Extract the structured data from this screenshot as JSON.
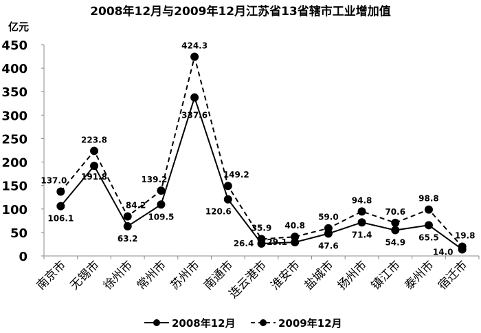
{
  "chart_data": {
    "type": "line",
    "title": "2008年12月与2009年12月江苏省13省辖市工业增加值",
    "ylabel": "亿元",
    "xlabel": "",
    "ylim": [
      0,
      450
    ],
    "yticks": [
      0,
      50,
      100,
      150,
      200,
      250,
      300,
      350,
      400,
      450
    ],
    "grid": false,
    "legend": "bottom",
    "categories": [
      "南京市",
      "无锡市",
      "徐州市",
      "常州市",
      "苏州市",
      "南通市",
      "连云港市",
      "淮安市",
      "盐城市",
      "扬州市",
      "镇江市",
      "泰州市",
      "宿迁市"
    ],
    "series": [
      {
        "name": "2008年12月",
        "style": "solid",
        "color": "#000000",
        "values": [
          106.1,
          191.8,
          63.2,
          109.5,
          337.6,
          120.6,
          26.4,
          29.1,
          47.6,
          71.4,
          54.9,
          65.5,
          14.0
        ]
      },
      {
        "name": "2009年12月",
        "style": "dashed",
        "color": "#000000",
        "values": [
          137.0,
          223.8,
          84.2,
          139.2,
          424.3,
          149.2,
          35.9,
          40.8,
          59.0,
          94.8,
          70.6,
          98.8,
          19.8
        ]
      }
    ]
  }
}
